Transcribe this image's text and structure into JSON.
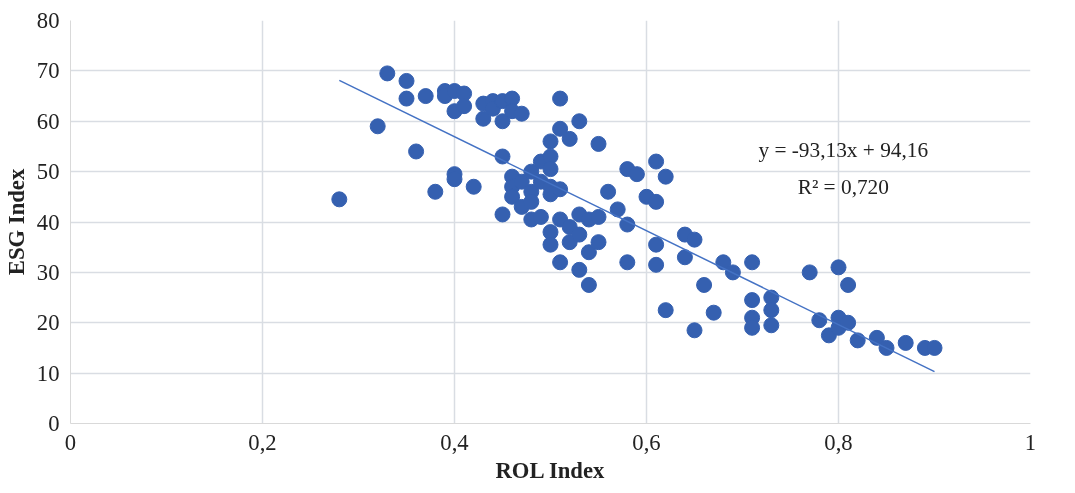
{
  "chart_data": {
    "type": "scatter",
    "xlabel": "ROL Index",
    "ylabel": "ESG Index",
    "xlim": [
      0,
      1
    ],
    "ylim": [
      0,
      80
    ],
    "xticks": [
      0,
      {
        "value": 0.2,
        "label": "0,2"
      },
      {
        "value": 0.4,
        "label": "0,4"
      },
      {
        "value": 0.6,
        "label": "0,6"
      },
      {
        "value": 0.8,
        "label": "0,8"
      },
      1
    ],
    "yticks": [
      0,
      10,
      20,
      30,
      40,
      50,
      60,
      70,
      80
    ],
    "grid": true,
    "annotations": [
      "y = -93,13x + 94,16",
      "R² = 0,720"
    ],
    "series": [
      {
        "marker": "circle",
        "color": "#3560b0",
        "x": [
          0.28,
          0.32,
          0.33,
          0.35,
          0.35,
          0.36,
          0.37,
          0.38,
          0.39,
          0.39,
          0.4,
          0.4,
          0.4,
          0.4,
          0.41,
          0.41,
          0.42,
          0.43,
          0.43,
          0.44,
          0.44,
          0.45,
          0.45,
          0.45,
          0.45,
          0.46,
          0.46,
          0.46,
          0.46,
          0.46,
          0.47,
          0.47,
          0.47,
          0.48,
          0.48,
          0.48,
          0.48,
          0.49,
          0.49,
          0.49,
          0.5,
          0.5,
          0.5,
          0.5,
          0.5,
          0.5,
          0.5,
          0.51,
          0.51,
          0.51,
          0.51,
          0.51,
          0.52,
          0.52,
          0.52,
          0.53,
          0.53,
          0.53,
          0.53,
          0.54,
          0.54,
          0.54,
          0.55,
          0.55,
          0.55,
          0.56,
          0.57,
          0.58,
          0.58,
          0.58,
          0.59,
          0.6,
          0.61,
          0.61,
          0.61,
          0.61,
          0.62,
          0.62,
          0.64,
          0.64,
          0.65,
          0.65,
          0.66,
          0.67,
          0.68,
          0.69,
          0.71,
          0.71,
          0.71,
          0.71,
          0.73,
          0.73,
          0.73,
          0.77,
          0.78,
          0.79,
          0.8,
          0.8,
          0.8,
          0.81,
          0.81,
          0.82,
          0.84,
          0.85,
          0.87,
          0.89,
          0.9
        ],
        "values": [
          44.5,
          59,
          69.5,
          68,
          64.5,
          54,
          65,
          46,
          66,
          65,
          66,
          62,
          49.5,
          48.5,
          65.5,
          63,
          47,
          63.5,
          60.5,
          64,
          62.5,
          64,
          60,
          53,
          41.5,
          64.5,
          62,
          49,
          47,
          45,
          61.5,
          48,
          43,
          50,
          46,
          44,
          40.5,
          52,
          48,
          41,
          56,
          53,
          50.5,
          47,
          45.5,
          38,
          35.5,
          64.5,
          58.5,
          46.5,
          40.5,
          32,
          56.5,
          39,
          36,
          60,
          41.5,
          37.5,
          30.5,
          40.5,
          34,
          27.5,
          55.5,
          41,
          36,
          46,
          42.5,
          50.5,
          39.5,
          32,
          49.5,
          45,
          52,
          44,
          35.5,
          31.5,
          49,
          22.5,
          37.5,
          33,
          36.5,
          18.5,
          27.5,
          22,
          32,
          30,
          32,
          24.5,
          21,
          19,
          25,
          22.5,
          19.5,
          30,
          20.5,
          17.5,
          31,
          21,
          19,
          27.5,
          20,
          16.5,
          17,
          15,
          16,
          15,
          15
        ]
      },
      {
        "type": "line",
        "color": "#4472c4",
        "x": [
          0.28,
          0.9
        ],
        "values": [
          68.1,
          10.3
        ]
      }
    ]
  }
}
